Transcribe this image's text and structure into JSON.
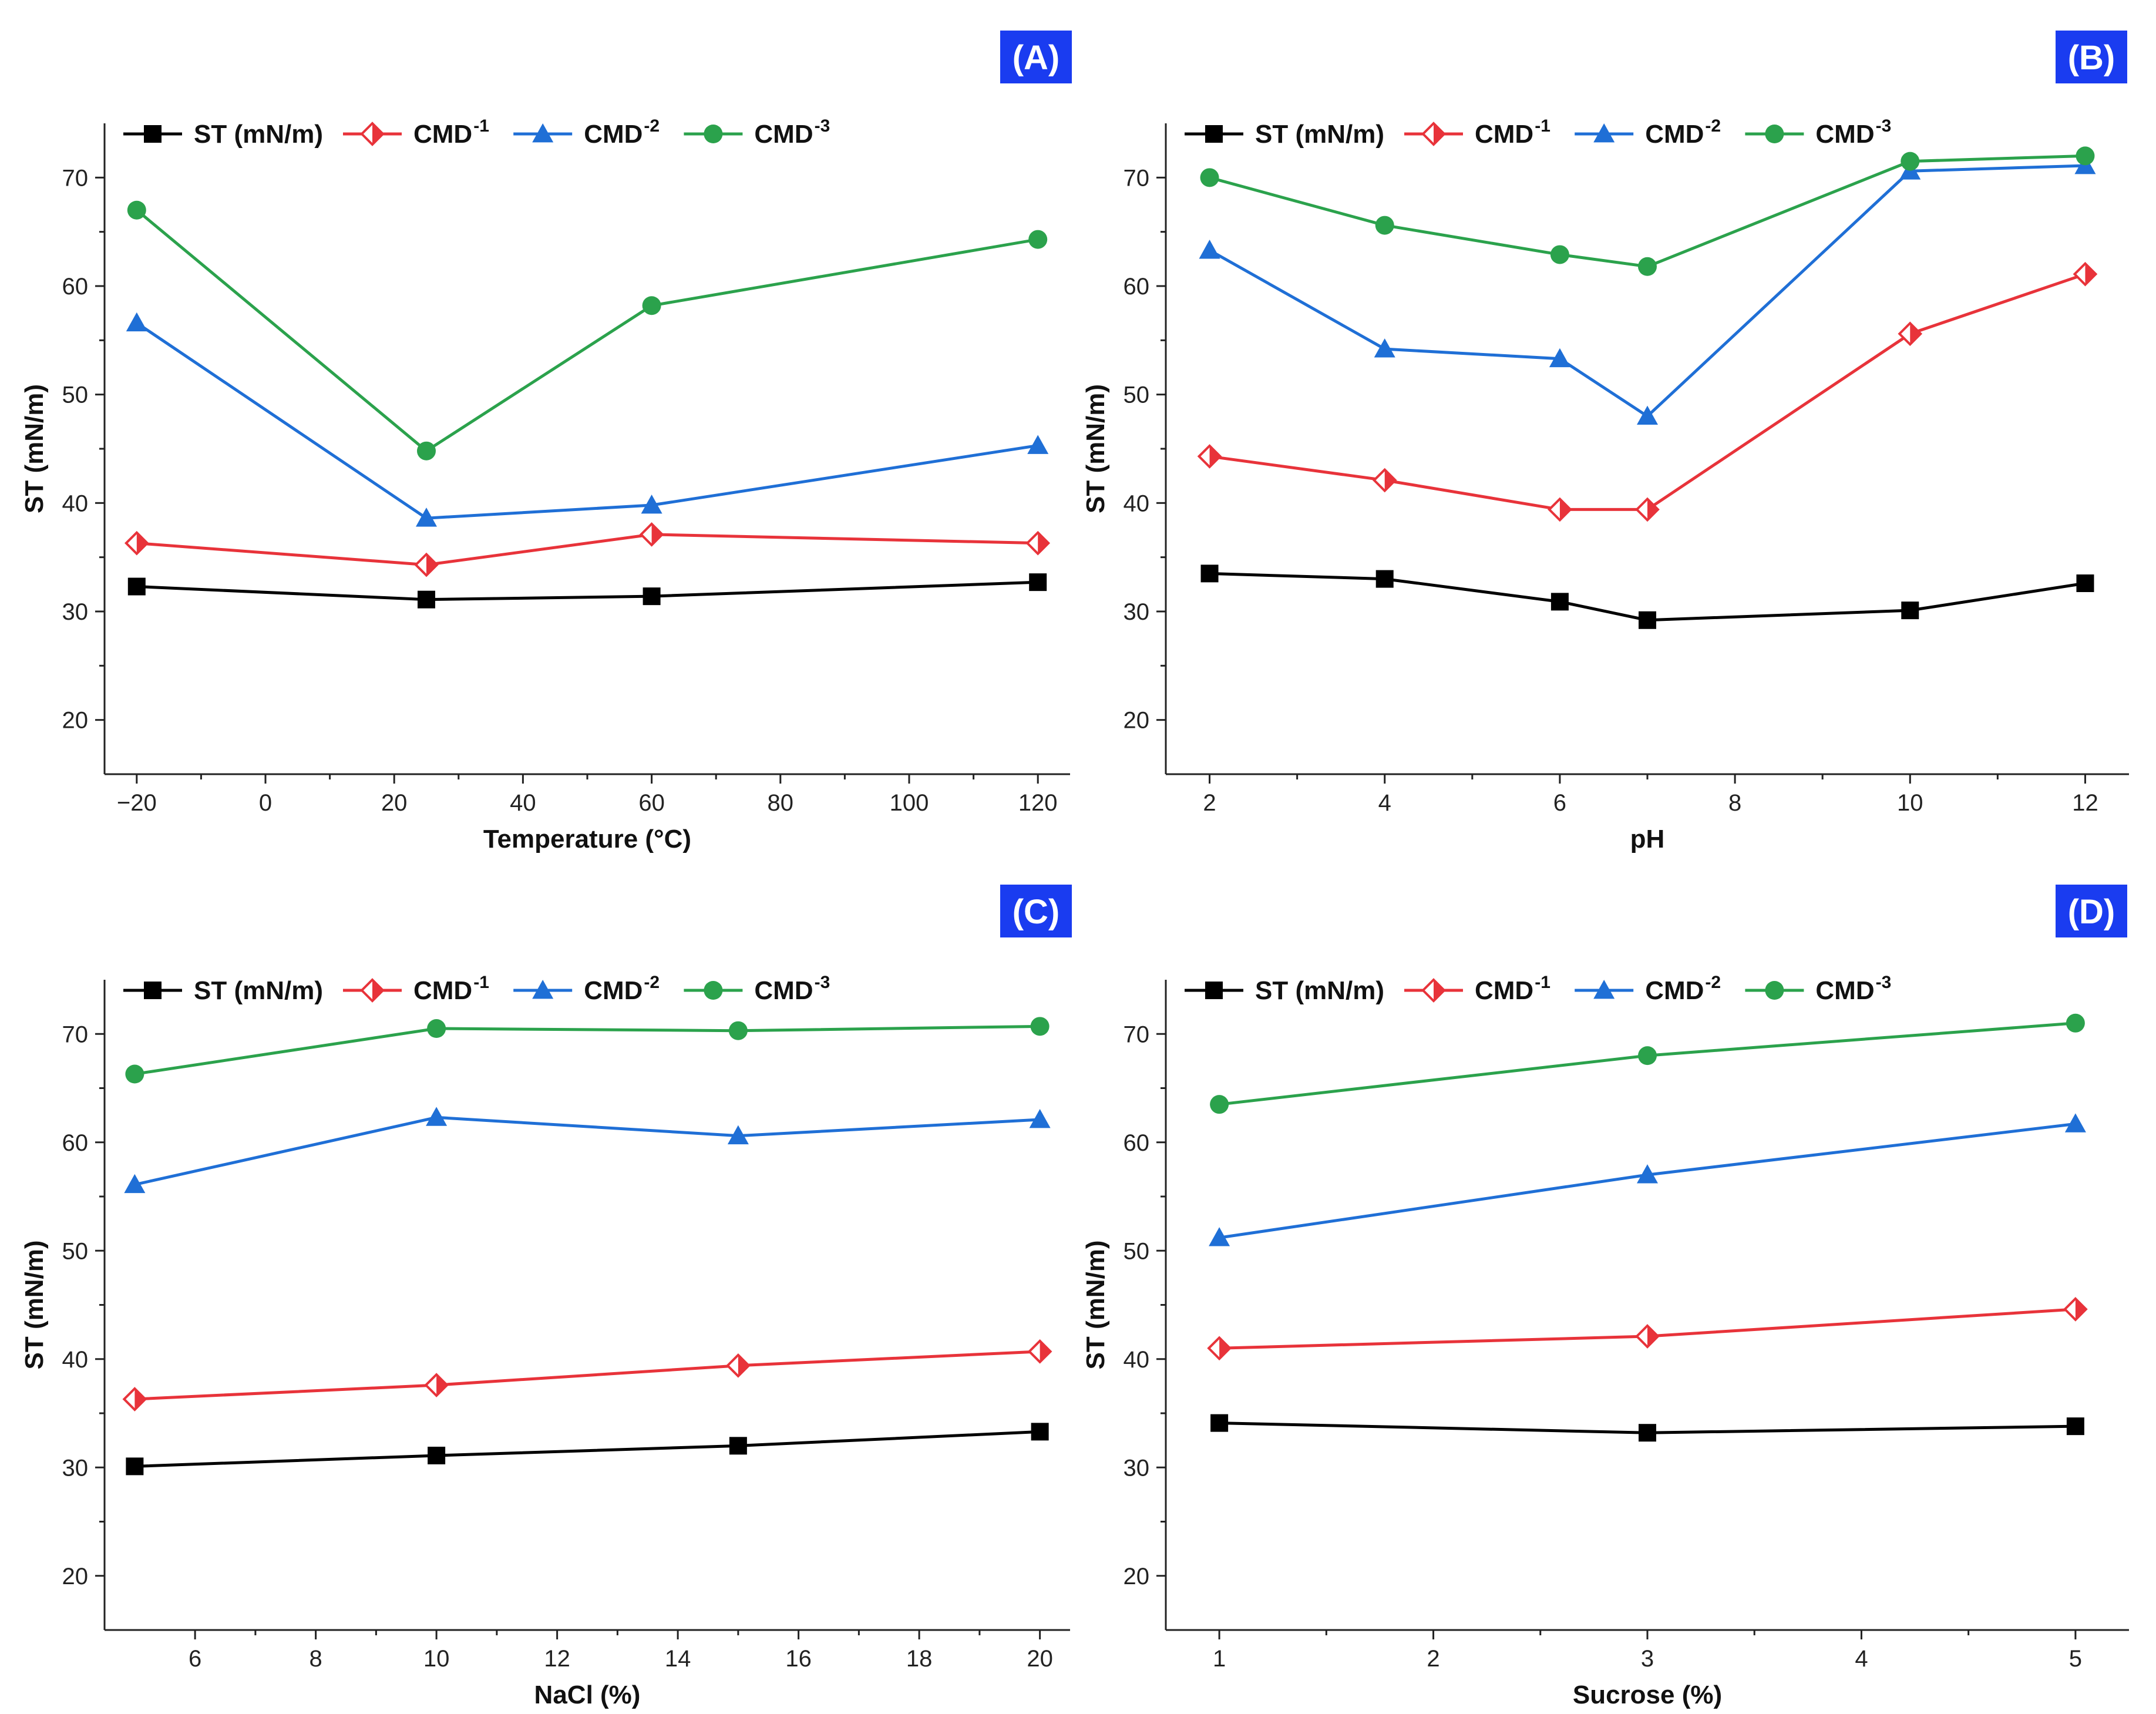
{
  "chart_data": [
    {
      "type": "line",
      "panel_label": "(A)",
      "xlabel": "Temperature (°C)",
      "ylabel": "ST (mN/m)",
      "xlim": [
        -25,
        125
      ],
      "ylim": [
        15,
        75
      ],
      "xticks": [
        -20,
        0,
        20,
        40,
        60,
        80,
        100,
        120
      ],
      "xtick_labels": [
        "−20",
        "0",
        "20",
        "40",
        "60",
        "80",
        "100",
        "120"
      ],
      "yticks": [
        20,
        30,
        40,
        50,
        60,
        70
      ],
      "x": [
        -20,
        25,
        60,
        120
      ],
      "legend_position": "top",
      "series": [
        {
          "name": "ST (mN/m)",
          "sup": "",
          "marker": "square",
          "color": "#000000",
          "values": [
            32.3,
            31.1,
            31.4,
            32.7
          ]
        },
        {
          "name": "CMD",
          "sup": "-1",
          "marker": "diamond",
          "color": "#e8333a",
          "values": [
            36.3,
            34.3,
            37.1,
            36.3
          ]
        },
        {
          "name": "CMD",
          "sup": "-2",
          "marker": "triangle",
          "color": "#1f6fd6",
          "values": [
            56.6,
            38.6,
            39.8,
            45.3
          ]
        },
        {
          "name": "CMD",
          "sup": "-3",
          "marker": "circle",
          "color": "#2ba24c",
          "values": [
            67.0,
            44.8,
            58.2,
            64.3
          ]
        }
      ]
    },
    {
      "type": "line",
      "panel_label": "(B)",
      "xlabel": "pH",
      "ylabel": "ST (mN/m)",
      "xlim": [
        1.5,
        12.5
      ],
      "ylim": [
        15,
        75
      ],
      "xticks": [
        2,
        4,
        6,
        8,
        10,
        12
      ],
      "xtick_labels": [
        "2",
        "4",
        "6",
        "8",
        "10",
        "12"
      ],
      "yticks": [
        20,
        30,
        40,
        50,
        60,
        70
      ],
      "x": [
        2,
        4,
        6,
        7,
        10,
        12
      ],
      "legend_position": "top",
      "series": [
        {
          "name": "ST (mN/m)",
          "sup": "",
          "marker": "square",
          "color": "#000000",
          "values": [
            33.5,
            33.0,
            30.9,
            29.2,
            30.1,
            32.6
          ]
        },
        {
          "name": "CMD",
          "sup": "-1",
          "marker": "diamond",
          "color": "#e8333a",
          "values": [
            44.3,
            42.1,
            39.4,
            39.4,
            55.6,
            61.1
          ]
        },
        {
          "name": "CMD",
          "sup": "-2",
          "marker": "triangle",
          "color": "#1f6fd6",
          "values": [
            63.3,
            54.2,
            53.3,
            48.0,
            70.6,
            71.1
          ]
        },
        {
          "name": "CMD",
          "sup": "-3",
          "marker": "circle",
          "color": "#2ba24c",
          "values": [
            70.0,
            65.6,
            62.9,
            61.8,
            71.5,
            72.0
          ]
        }
      ]
    },
    {
      "type": "line",
      "panel_label": "(C)",
      "xlabel": "NaCl (%)",
      "ylabel": "ST (mN/m)",
      "xlim": [
        4.5,
        20.5
      ],
      "ylim": [
        15,
        75
      ],
      "xticks": [
        6,
        8,
        10,
        12,
        14,
        16,
        18,
        20
      ],
      "xtick_labels": [
        "6",
        "8",
        "10",
        "12",
        "14",
        "16",
        "18",
        "20"
      ],
      "yticks": [
        20,
        30,
        40,
        50,
        60,
        70
      ],
      "x": [
        5,
        10,
        15,
        20
      ],
      "legend_position": "top",
      "series": [
        {
          "name": "ST (mN/m)",
          "sup": "",
          "marker": "square",
          "color": "#000000",
          "values": [
            30.1,
            31.1,
            32.0,
            33.3
          ]
        },
        {
          "name": "CMD",
          "sup": "-1",
          "marker": "diamond",
          "color": "#e8333a",
          "values": [
            36.3,
            37.6,
            39.4,
            40.7
          ]
        },
        {
          "name": "CMD",
          "sup": "-2",
          "marker": "triangle",
          "color": "#1f6fd6",
          "values": [
            56.1,
            62.3,
            60.6,
            62.1
          ]
        },
        {
          "name": "CMD",
          "sup": "-3",
          "marker": "circle",
          "color": "#2ba24c",
          "values": [
            66.3,
            70.5,
            70.3,
            70.7
          ]
        }
      ]
    },
    {
      "type": "line",
      "panel_label": "(D)",
      "xlabel": "Sucrose (%)",
      "ylabel": "ST (mN/m)",
      "xlim": [
        0.75,
        5.25
      ],
      "ylim": [
        15,
        75
      ],
      "xticks": [
        1,
        2,
        3,
        4,
        5
      ],
      "xtick_labels": [
        "1",
        "2",
        "3",
        "4",
        "5"
      ],
      "yticks": [
        20,
        30,
        40,
        50,
        60,
        70
      ],
      "x": [
        1,
        3,
        5
      ],
      "legend_position": "top",
      "series": [
        {
          "name": "ST (mN/m)",
          "sup": "",
          "marker": "square",
          "color": "#000000",
          "values": [
            34.1,
            33.2,
            33.8
          ]
        },
        {
          "name": "CMD",
          "sup": "-1",
          "marker": "diamond",
          "color": "#e8333a",
          "values": [
            41.0,
            42.1,
            44.6
          ]
        },
        {
          "name": "CMD",
          "sup": "-2",
          "marker": "triangle",
          "color": "#1f6fd6",
          "values": [
            51.2,
            57.0,
            61.7
          ]
        },
        {
          "name": "CMD",
          "sup": "-3",
          "marker": "circle",
          "color": "#2ba24c",
          "values": [
            63.5,
            68.0,
            71.0
          ]
        }
      ]
    }
  ],
  "style": {
    "panel_tag_background": "#1a3cf0",
    "axis_color": "#222222"
  }
}
